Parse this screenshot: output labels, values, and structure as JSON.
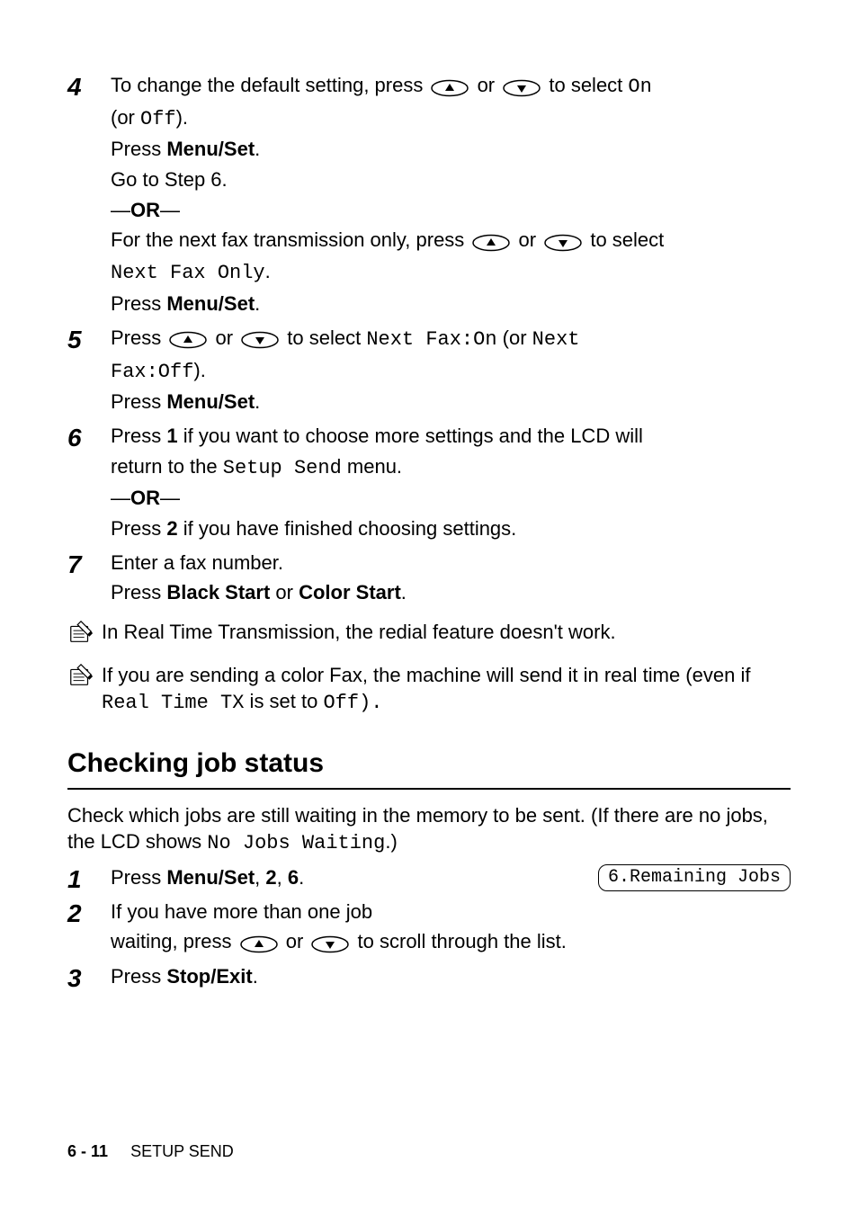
{
  "colors": {
    "text": "#000000",
    "background": "#ffffff",
    "rule": "#000000",
    "lcd_border": "#000000",
    "icon_outline": "#000000",
    "icon_fill": "#ffffff"
  },
  "typography": {
    "body_font": "Arial, Helvetica, sans-serif",
    "body_size_pt": 16,
    "mono_font": "Courier New",
    "step_num_size_pt": 21,
    "section_title_size_pt": 22
  },
  "icons": {
    "up_button": "oval outline with up triangle",
    "down_button": "oval outline with down triangle",
    "note": "pencil-pad sketch"
  },
  "steps": [
    {
      "num": "4",
      "lines": [
        {
          "parts": [
            {
              "t": "To change the default setting, press "
            },
            {
              "icon": "up"
            },
            {
              "t": " or "
            },
            {
              "icon": "down"
            },
            {
              "t": " to select "
            },
            {
              "mono": "On"
            }
          ]
        },
        {
          "parts": [
            {
              "t": "(or "
            },
            {
              "mono": "Off"
            },
            {
              "t": ")."
            }
          ]
        },
        {
          "parts": [
            {
              "t": "Press "
            },
            {
              "b": "Menu/Set"
            },
            {
              "t": "."
            }
          ]
        },
        {
          "parts": [
            {
              "t": "Go to Step 6."
            }
          ]
        },
        {
          "parts": [
            {
              "t": "—"
            },
            {
              "b": "OR"
            },
            {
              "t": "—"
            }
          ],
          "cls": "or-line"
        },
        {
          "parts": [
            {
              "t": "For the next fax transmission only, press "
            },
            {
              "icon": "up"
            },
            {
              "t": " or "
            },
            {
              "icon": "down"
            },
            {
              "t": " to select"
            }
          ]
        },
        {
          "parts": [
            {
              "mono": "Next Fax Only"
            },
            {
              "t": "."
            }
          ]
        },
        {
          "parts": [
            {
              "t": "Press "
            },
            {
              "b": "Menu/Set"
            },
            {
              "t": "."
            }
          ]
        }
      ]
    },
    {
      "num": "5",
      "lines": [
        {
          "parts": [
            {
              "t": "Press "
            },
            {
              "icon": "up"
            },
            {
              "t": " or "
            },
            {
              "icon": "down"
            },
            {
              "t": " to select "
            },
            {
              "mono": "Next Fax:On"
            },
            {
              "t": " (or "
            },
            {
              "mono": "Next"
            }
          ]
        },
        {
          "parts": [
            {
              "mono": "Fax:Off"
            },
            {
              "t": ")."
            }
          ]
        },
        {
          "parts": [
            {
              "t": "Press "
            },
            {
              "b": "Menu/Set"
            },
            {
              "t": "."
            }
          ]
        }
      ]
    },
    {
      "num": "6",
      "lines": [
        {
          "parts": [
            {
              "t": "Press "
            },
            {
              "b": "1"
            },
            {
              "t": " if you want to choose more settings and the LCD will"
            }
          ]
        },
        {
          "parts": [
            {
              "t": "return to the "
            },
            {
              "mono": "Setup Send"
            },
            {
              "t": " menu."
            }
          ]
        },
        {
          "parts": [
            {
              "t": "—"
            },
            {
              "b": "OR"
            },
            {
              "t": "—"
            }
          ],
          "cls": "or-line"
        },
        {
          "parts": [
            {
              "t": "Press "
            },
            {
              "b": "2"
            },
            {
              "t": " if you have finished choosing settings."
            }
          ]
        }
      ]
    },
    {
      "num": "7",
      "lines": [
        {
          "parts": [
            {
              "t": "Enter a fax number."
            }
          ]
        },
        {
          "parts": [
            {
              "t": "Press "
            },
            {
              "b": "Black Start"
            },
            {
              "t": " or "
            },
            {
              "b": "Color Start"
            },
            {
              "t": "."
            }
          ]
        }
      ]
    }
  ],
  "notes": [
    {
      "parts": [
        {
          "t": "In Real Time Transmission, the redial feature doesn't work."
        }
      ]
    },
    {
      "parts": [
        {
          "t": "If you are sending a color Fax, the machine will send it in real time (even if "
        },
        {
          "mono": "Real Time TX"
        },
        {
          "t": " is set to "
        },
        {
          "mono": "Off)."
        }
      ]
    }
  ],
  "section2": {
    "title": "Checking job status",
    "intro": {
      "parts": [
        {
          "t": "Check which jobs are still waiting in the memory to be sent. (If there are no jobs, the LCD shows "
        },
        {
          "mono": "No Jobs Waiting"
        },
        {
          "t": ".)"
        }
      ]
    },
    "steps": [
      {
        "num": "1",
        "lcd": "6.Remaining Jobs",
        "lines": [
          {
            "parts": [
              {
                "t": "Press "
              },
              {
                "b": "Menu/Set"
              },
              {
                "t": ", "
              },
              {
                "b": "2"
              },
              {
                "t": ", "
              },
              {
                "b": "6"
              },
              {
                "t": "."
              }
            ]
          }
        ]
      },
      {
        "num": "2",
        "lines": [
          {
            "parts": [
              {
                "t": "If you have more than one job"
              }
            ]
          },
          {
            "parts": [
              {
                "t": "waiting, press "
              },
              {
                "icon": "up"
              },
              {
                "t": " or "
              },
              {
                "icon": "down"
              },
              {
                "t": " to scroll through the list."
              }
            ]
          }
        ]
      },
      {
        "num": "3",
        "lines": [
          {
            "parts": [
              {
                "t": "Press "
              },
              {
                "b": "Stop/Exit"
              },
              {
                "t": "."
              }
            ]
          }
        ]
      }
    ]
  },
  "footer": {
    "page": "6 - 11",
    "label": "SETUP SEND"
  }
}
